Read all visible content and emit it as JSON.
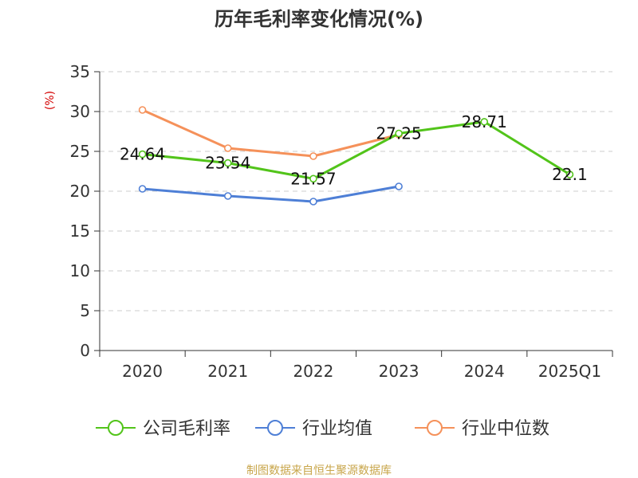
{
  "chart_data": {
    "type": "line",
    "title": "历年毛利率变化情况(%)",
    "ylabel": "(%)",
    "xlabel": "",
    "ylim": [
      0,
      35
    ],
    "yticks": [
      0,
      5,
      10,
      15,
      20,
      25,
      30,
      35
    ],
    "categories": [
      "2020",
      "2021",
      "2022",
      "2023",
      "2024",
      "2025Q1"
    ],
    "grid": true,
    "legend_position": "bottom",
    "series": [
      {
        "name": "公司毛利率",
        "color": "#52c41a",
        "values": [
          24.64,
          23.54,
          21.57,
          27.25,
          28.71,
          22.1
        ],
        "labels": [
          "24.64",
          "23.54",
          "21.57",
          "27.25",
          "28.71",
          "22.1"
        ]
      },
      {
        "name": "行业均值",
        "color": "#4e7fd6",
        "values": [
          20.3,
          19.4,
          18.7,
          20.6,
          null,
          null
        ]
      },
      {
        "name": "行业中位数",
        "color": "#f5915a",
        "values": [
          30.2,
          25.4,
          24.4,
          27.1,
          null,
          null
        ]
      }
    ],
    "source": "制图数据来自恒生聚源数据库",
    "colors": {
      "title": "#333333",
      "axis": "#333333",
      "grid": "#cccccc",
      "ylabel": "#d40000",
      "source": "#c8a64b"
    }
  }
}
